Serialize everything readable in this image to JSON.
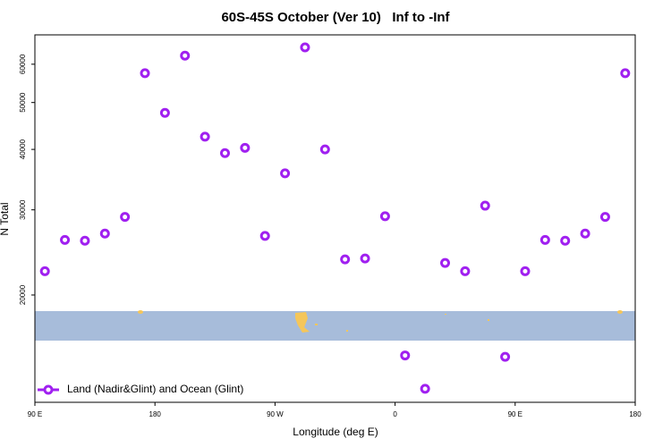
{
  "chart_data": {
    "type": "scatter",
    "title": "60S-45S October (Ver 10)   Inf to -Inf",
    "x_label": "Longitude (deg E)",
    "y_label": "N Total",
    "log_y": true,
    "legend_position": "bottom-left",
    "xlim": [
      90,
      540
    ],
    "xticks": [
      {
        "value": 90,
        "label": "90 E"
      },
      {
        "value": 180,
        "label": "180"
      },
      {
        "value": 270,
        "label": "90 W"
      },
      {
        "value": 360,
        "label": "0"
      },
      {
        "value": 450,
        "label": "90 E"
      },
      {
        "value": 540,
        "label": "180"
      }
    ],
    "ylim": [
      12000,
      69000
    ],
    "yticks": [
      20000,
      30000,
      40000,
      50000,
      60000
    ],
    "series": [
      {
        "name": "Land (Nadir&Glint) and Ocean (Glint)",
        "color": "#a020f0",
        "x": [
          97.5,
          112.5,
          127.5,
          142.5,
          157.5,
          172.5,
          187.5,
          202.5,
          217.5,
          232.5,
          247.5,
          262.5,
          277.5,
          292.5,
          307.5,
          322.5,
          337.5,
          352.5,
          367.5,
          382.5,
          397.5,
          412.5,
          427.5,
          442.5,
          457.5,
          472.5,
          487.5,
          502.5,
          517.5,
          532.5
        ],
        "values": [
          22400,
          26000,
          25900,
          26800,
          29000,
          57500,
          47600,
          62500,
          42500,
          39300,
          40300,
          26500,
          35700,
          65000,
          40000,
          23700,
          23800,
          29100,
          15000,
          12800,
          23300,
          22400,
          30600,
          14900,
          22400,
          26000,
          25900,
          26800,
          29000,
          57500
        ]
      }
    ]
  }
}
